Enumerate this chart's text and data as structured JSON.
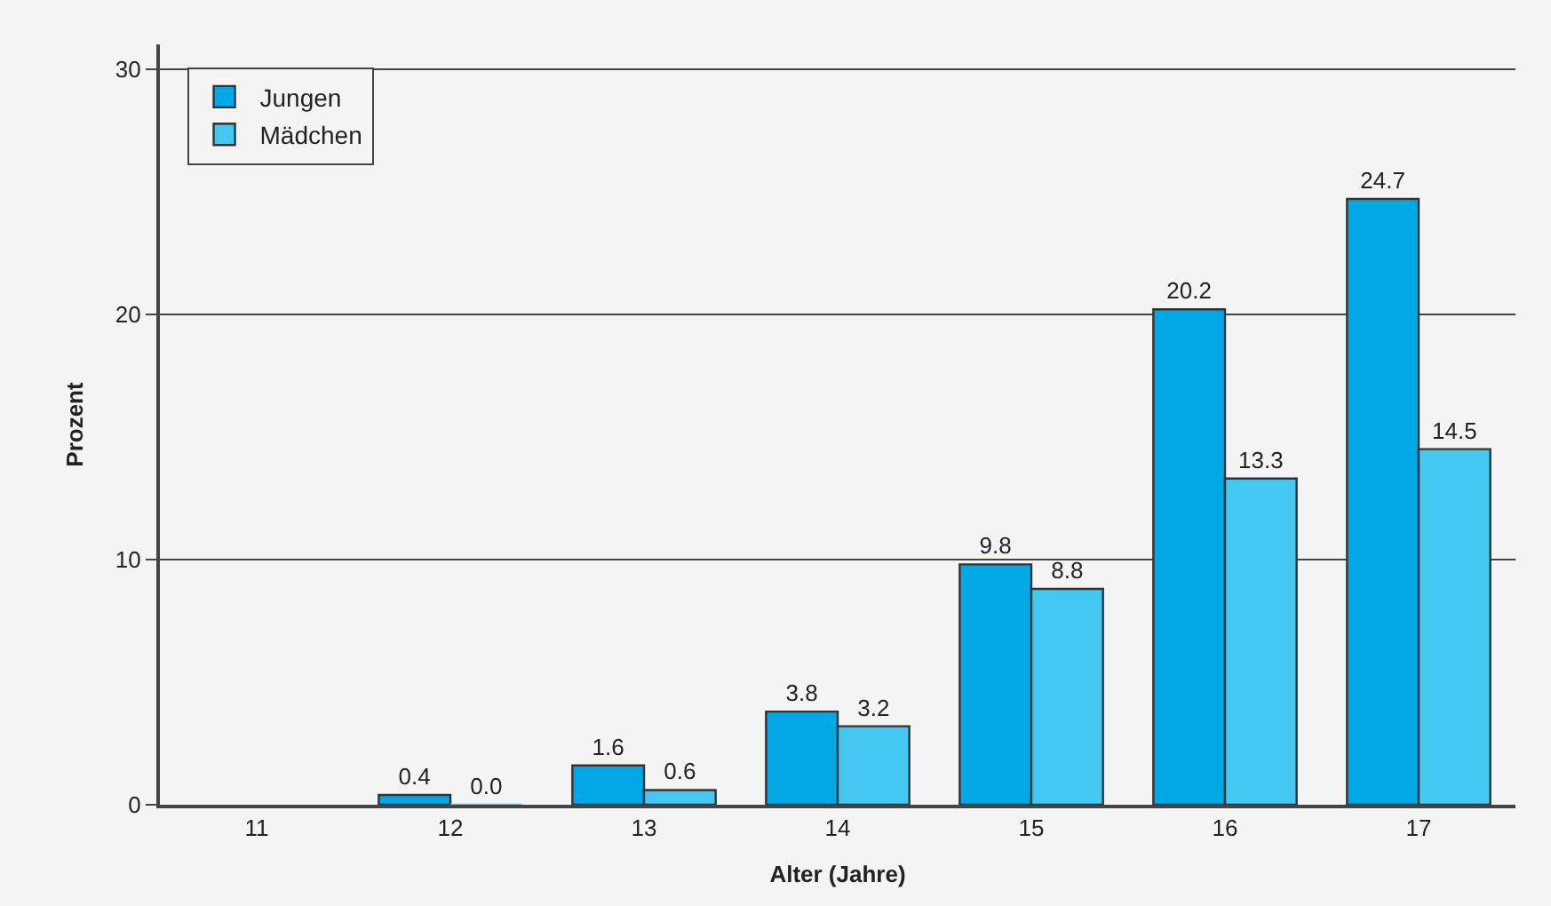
{
  "chart_data": {
    "type": "bar",
    "xlabel": "Alter (Jahre)",
    "ylabel": "Prozent",
    "categories": [
      "11",
      "12",
      "13",
      "14",
      "15",
      "16",
      "17"
    ],
    "series": [
      {
        "name": "Jungen",
        "color": "#00a8e6",
        "values": [
          null,
          0.4,
          1.6,
          3.8,
          9.8,
          20.2,
          24.7
        ],
        "value_labels": [
          null,
          "0.4",
          "1.6",
          "3.8",
          "9.8",
          "20.2",
          "24.7"
        ]
      },
      {
        "name": "Mädchen",
        "color": "#44c8f2",
        "values": [
          null,
          0.0,
          0.6,
          3.2,
          8.8,
          13.3,
          14.5
        ],
        "value_labels": [
          null,
          "0.0",
          "0.6",
          "3.2",
          "8.8",
          "13.3",
          "14.5"
        ]
      }
    ],
    "ylim": [
      0,
      31
    ],
    "yticks": [
      0,
      10,
      20,
      30
    ],
    "grid": "y",
    "legend": "top left"
  }
}
